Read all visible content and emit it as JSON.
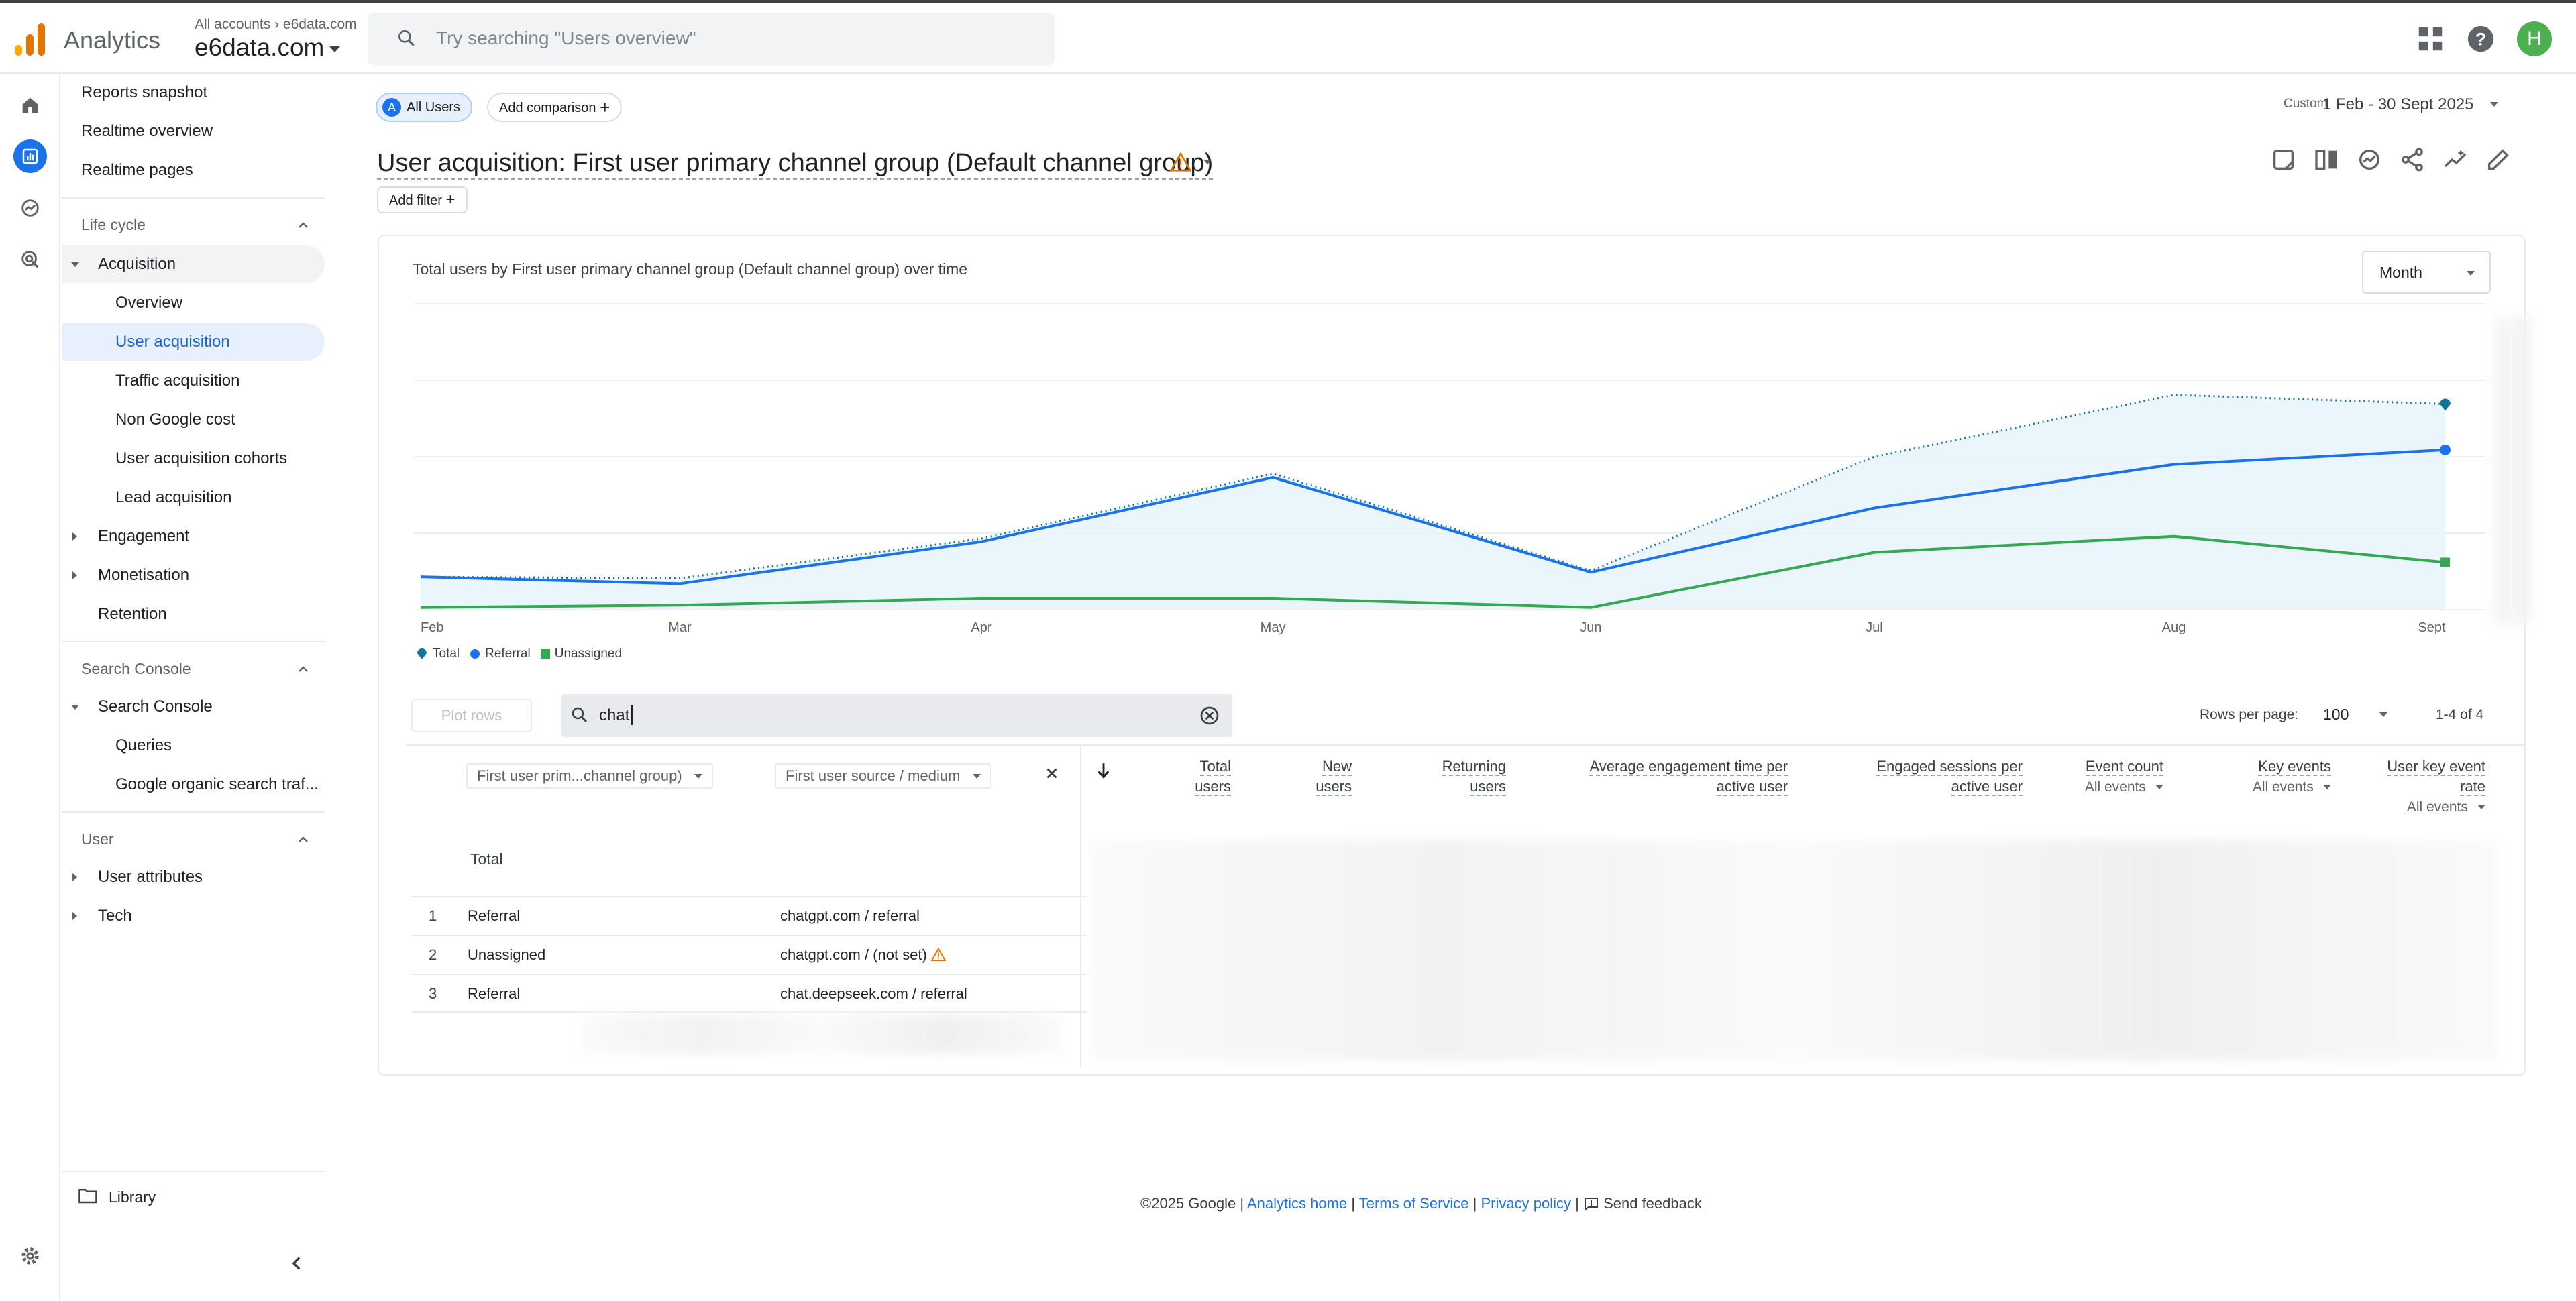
{
  "topbar": {
    "app_name": "Analytics",
    "account_crumb": "All accounts",
    "account_sub": "e6data.com",
    "property": "e6data.com",
    "search_placeholder": "Try searching \"Users overview\"",
    "avatar_initial": "H"
  },
  "nav": {
    "items_top": [
      "Reports snapshot",
      "Realtime overview",
      "Realtime pages"
    ],
    "lifecycle_label": "Life cycle",
    "acquisition": "Acquisition",
    "acquisition_children": [
      "Overview",
      "User acquisition",
      "Traffic acquisition",
      "Non Google cost",
      "User acquisition cohorts",
      "Lead acquisition"
    ],
    "engagement": "Engagement",
    "monetisation": "Monetisation",
    "retention": "Retention",
    "search_console_section": "Search Console",
    "search_console": "Search Console",
    "search_console_children": [
      "Queries",
      "Google organic search traf..."
    ],
    "user_section": "User",
    "user_attributes": "User attributes",
    "tech": "Tech",
    "library": "Library"
  },
  "header": {
    "chip_all_users": "All Users",
    "chip_all_users_letter": "A",
    "chip_add_comparison": "Add comparison",
    "date_label": "Custom",
    "date_range": "1 Feb - 30 Sept 2025",
    "title": "User acquisition: First user primary channel group (Default channel group)",
    "add_filter": "Add filter"
  },
  "chart_card": {
    "title": "Total users by First user primary channel group (Default channel group) over time",
    "granularity": "Month"
  },
  "chart_data": {
    "type": "line",
    "categories": [
      "Feb",
      "Mar",
      "Apr",
      "May",
      "Jun",
      "Jul",
      "Aug",
      "Sept"
    ],
    "series": [
      {
        "name": "Total",
        "values": [
          42,
          40,
          92,
          177,
          50,
          199,
          280,
          268
        ]
      },
      {
        "name": "Referral",
        "values": [
          42,
          33,
          88,
          172,
          48,
          132,
          189,
          208
        ]
      },
      {
        "name": "Unassigned",
        "values": [
          2,
          5,
          14,
          14,
          2,
          74,
          95,
          61
        ]
      }
    ],
    "ylim": [
      0,
      400
    ],
    "grid": true,
    "legend": "bottom-left",
    "colors": {
      "Total": "#12739c",
      "Referral": "#1a73e8",
      "Unassigned": "#34a853"
    }
  },
  "table": {
    "plot_rows": "Plot rows",
    "search_value": "chat",
    "rows_per_page_label": "Rows per page:",
    "rows_per_page": "100",
    "range": "1-4 of 4",
    "dim1": "First user prim...channel group)",
    "dim2": "First user source / medium",
    "total_label": "Total",
    "columns": [
      {
        "l1": "Total",
        "l2": "users"
      },
      {
        "l1": "New",
        "l2": "users"
      },
      {
        "l1": "Returning",
        "l2": "users"
      },
      {
        "l1": "Average engagement time per",
        "l2": "active user"
      },
      {
        "l1": "Engaged sessions per",
        "l2": "active user"
      },
      {
        "l1": "Event count",
        "l2": "All events"
      },
      {
        "l1": "Key events",
        "l2": "All events"
      },
      {
        "l1": "User key event",
        "l2": "rate",
        "l3": "All events"
      }
    ],
    "rows": [
      {
        "n": "1",
        "channel": "Referral",
        "source": "chatgpt.com / referral"
      },
      {
        "n": "2",
        "channel": "Unassigned",
        "source": "chatgpt.com / (not set)"
      },
      {
        "n": "3",
        "channel": "Referral",
        "source": "chat.deepseek.com / referral"
      }
    ]
  },
  "footer": {
    "copyright": "©2025 Google |",
    "analytics_home": "Analytics home",
    "sep1": "|",
    "terms": "Terms of Service",
    "sep2": "|",
    "privacy": "Privacy policy",
    "sep3": "|",
    "feedback": "Send feedback"
  }
}
